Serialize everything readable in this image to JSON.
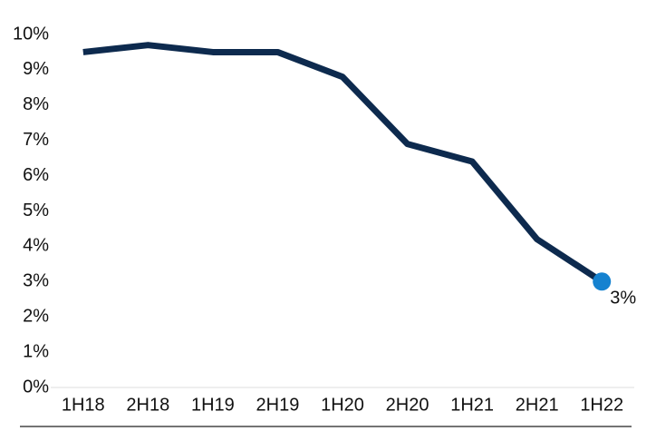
{
  "chart_data": {
    "type": "line",
    "categories": [
      "1H18",
      "2H18",
      "1H19",
      "2H19",
      "1H20",
      "2H20",
      "1H21",
      "2H21",
      "1H22"
    ],
    "series": [
      {
        "color": "#0d2a4e",
        "marker_color": "#1582d0",
        "values": [
          9.5,
          9.7,
          9.5,
          9.5,
          8.8,
          6.9,
          6.4,
          4.2,
          3
        ],
        "value_labels": [
          null,
          null,
          null,
          null,
          null,
          null,
          null,
          null,
          "3%"
        ]
      }
    ],
    "ylim": [
      0,
      10
    ],
    "yticks": [
      {
        "value": 0,
        "label": "0%"
      },
      {
        "value": 1,
        "label": "1%"
      },
      {
        "value": 2,
        "label": "2%"
      },
      {
        "value": 3,
        "label": "3%"
      },
      {
        "value": 4,
        "label": "4%"
      },
      {
        "value": 5,
        "label": "5%"
      },
      {
        "value": 6,
        "label": "6%"
      },
      {
        "value": 7,
        "label": "7%"
      },
      {
        "value": 8,
        "label": "8%"
      },
      {
        "value": 9,
        "label": "9%"
      },
      {
        "value": 10,
        "label": "10%"
      }
    ],
    "grid": false
  }
}
